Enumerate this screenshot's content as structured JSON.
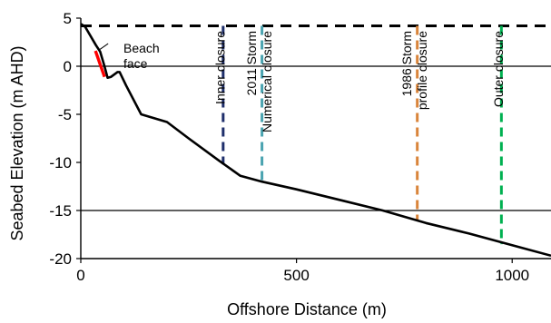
{
  "chart_data": {
    "type": "line",
    "xlabel": "Offshore Distance (m)",
    "ylabel": "Seabed Elevation (m AHD)",
    "xlim": [
      0,
      1090
    ],
    "ylim": [
      -20,
      5
    ],
    "x_ticks": [
      0,
      500,
      1000
    ],
    "y_ticks": [
      5,
      0,
      -5,
      -10,
      -15,
      -20
    ],
    "y_gridlines": [
      0,
      -15
    ],
    "profile": {
      "x": [
        0,
        10,
        35,
        45,
        55,
        62,
        70,
        85,
        90,
        105,
        140,
        200,
        250,
        320,
        370,
        420,
        500,
        600,
        700,
        800,
        900,
        1000,
        1090
      ],
      "y": [
        4.4,
        4.1,
        2.2,
        1.5,
        0.0,
        -1.2,
        -1.1,
        -0.6,
        -0.6,
        -2.0,
        -5.0,
        -5.8,
        -7.5,
        -9.8,
        -11.4,
        -12.0,
        -12.8,
        -13.9,
        -15.0,
        -16.3,
        -17.4,
        -18.6,
        -19.7
      ]
    },
    "beach_face": {
      "label": "Beach face",
      "x": [
        34,
        55
      ],
      "y": [
        1.6,
        -1.1
      ],
      "color": "#ff0000"
    },
    "berm_line": {
      "y": 4.2,
      "x": [
        0,
        1090
      ],
      "color": "#000000"
    },
    "closures": [
      {
        "label": [
          "Inner closure"
        ],
        "x": 330,
        "y_bottom": -10.2,
        "color": "#1f2f6b"
      },
      {
        "label": [
          "2011 Storm",
          "Numerical closure"
        ],
        "x": 420,
        "y_bottom": -12.1,
        "color": "#4aa3b0"
      },
      {
        "label": [
          "1986 Storm",
          "profile closure"
        ],
        "x": 780,
        "y_bottom": -16.0,
        "color": "#d9853b"
      },
      {
        "label": [
          "Outer closure"
        ],
        "x": 975,
        "y_bottom": -18.5,
        "color": "#00b050"
      }
    ]
  }
}
